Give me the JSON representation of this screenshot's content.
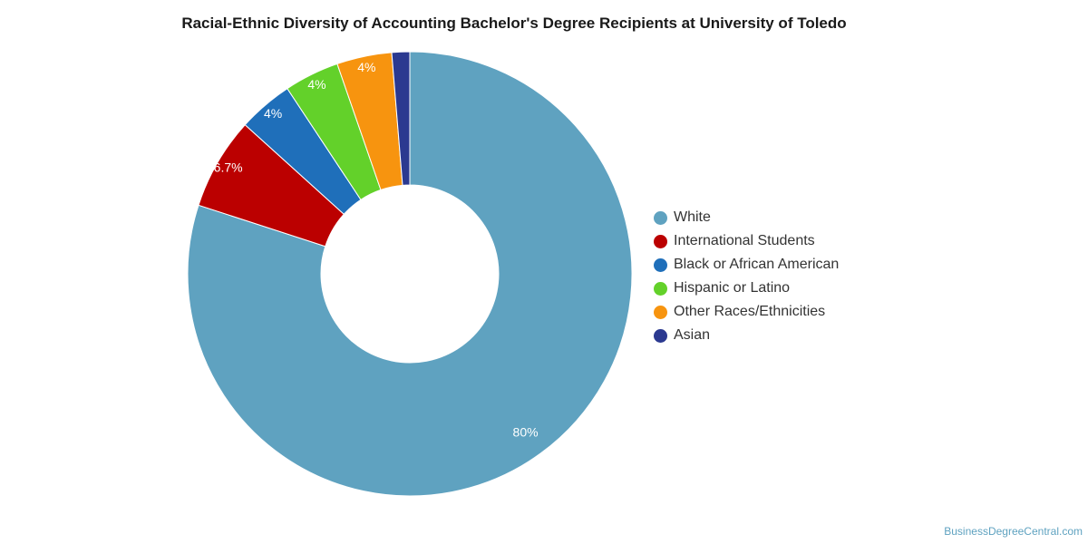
{
  "chart_data": {
    "type": "pie",
    "title": "Racial-Ethnic Diversity of Accounting Bachelor's Degree Recipients at University of Toledo",
    "donut": true,
    "categories": [
      "White",
      "International Students",
      "Black or African American",
      "Hispanic or Latino",
      "Other Races/Ethnicities",
      "Asian"
    ],
    "values": [
      80,
      6.7,
      4,
      4,
      4,
      1.3
    ],
    "data_labels": [
      "80%",
      "6.7%",
      "4%",
      "4%",
      "4%",
      ""
    ],
    "colors": [
      "#5fa2c0",
      "#bb0000",
      "#1f6fba",
      "#63d12a",
      "#f7940f",
      "#2b3990"
    ],
    "legend_position": "right"
  },
  "credit": "BusinessDegreeCentral.com"
}
